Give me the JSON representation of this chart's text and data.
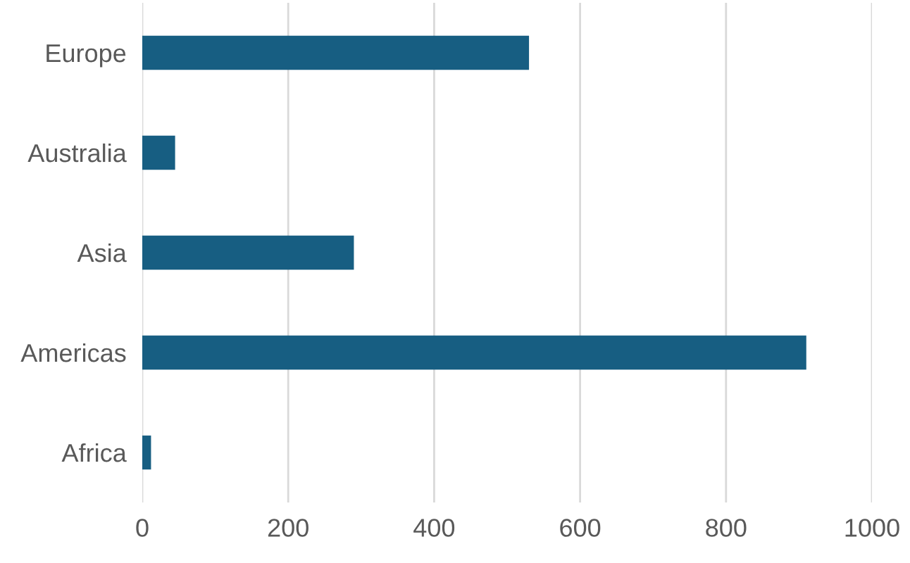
{
  "chart_data": {
    "type": "bar",
    "orientation": "horizontal",
    "categories": [
      "Europe",
      "Australia",
      "Asia",
      "Americas",
      "Africa"
    ],
    "values": [
      530,
      45,
      290,
      910,
      12
    ],
    "color": "#175e82",
    "xlim": [
      0,
      1000
    ],
    "xticks": [
      0,
      200,
      400,
      600,
      800,
      1000
    ],
    "grid": "x",
    "legend": false
  }
}
